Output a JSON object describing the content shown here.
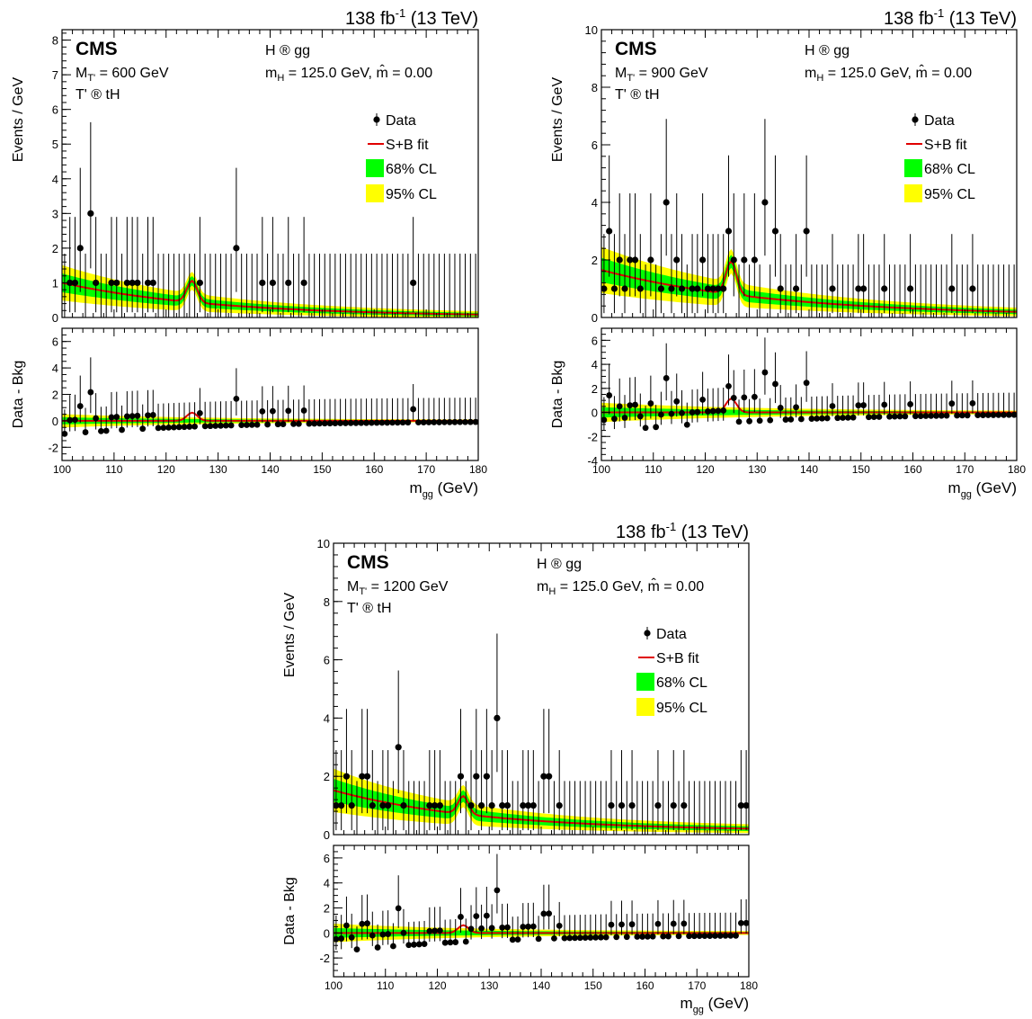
{
  "chart_data": [
    {
      "type": "scatter",
      "lumi": "138 fb",
      "lumi_exp": "-1",
      "energy": "(13 TeV)",
      "cms": "CMS",
      "mass_label": "= 600 GeV",
      "process": "T' ® tH",
      "decay": "H ® gg",
      "mh_text": "= 125.0 GeV, m̂ = 0.00",
      "ylabel_top": "Events / GeV",
      "ylabel_bottom": "Data - Bkg",
      "xlabel": "(GeV)",
      "xlim": [
        100,
        180
      ],
      "ylim_top": [
        0,
        8.3
      ],
      "ylim_bottom": [
        -3,
        7
      ],
      "yticks_top": [
        0,
        1,
        2,
        3,
        4,
        5,
        6,
        7,
        8
      ],
      "yticks_bottom": [
        -2,
        0,
        2,
        4,
        6
      ],
      "xticks": [
        100,
        110,
        120,
        130,
        140,
        150,
        160,
        170,
        180
      ],
      "legend": [
        "Data",
        "S+B fit",
        "68% CL",
        "95% CL"
      ],
      "fit": {
        "bkg_a": 0.98,
        "bkg_b": 0.034,
        "bkg_c": 0.02,
        "sig": 0.62,
        "sigma": 1.0
      },
      "data_points": [
        {
          "x": 100.5,
          "y": 0
        },
        {
          "x": 101.5,
          "y": 1
        },
        {
          "x": 102.5,
          "y": 1
        },
        {
          "x": 103.5,
          "y": 2
        },
        {
          "x": 105.5,
          "y": 3
        },
        {
          "x": 106.5,
          "y": 1
        },
        {
          "x": 109.5,
          "y": 1
        },
        {
          "x": 110.5,
          "y": 1
        },
        {
          "x": 112.5,
          "y": 1
        },
        {
          "x": 113.5,
          "y": 1
        },
        {
          "x": 114.5,
          "y": 1
        },
        {
          "x": 116.5,
          "y": 1
        },
        {
          "x": 117.5,
          "y": 1
        },
        {
          "x": 126.5,
          "y": 1
        },
        {
          "x": 133.5,
          "y": 2
        },
        {
          "x": 138.5,
          "y": 1
        },
        {
          "x": 140.5,
          "y": 1
        },
        {
          "x": 143.5,
          "y": 1
        },
        {
          "x": 146.5,
          "y": 1
        },
        {
          "x": 167.5,
          "y": 1
        }
      ]
    },
    {
      "type": "scatter",
      "lumi": "138 fb",
      "lumi_exp": "-1",
      "energy": "(13 TeV)",
      "cms": "CMS",
      "mass_label": "= 900 GeV",
      "process": "T' ® tH",
      "decay": "H ® gg",
      "mh_text": "= 125.0 GeV, m̂ = 0.00",
      "ylabel_top": "Events / GeV",
      "ylabel_bottom": "Data - Bkg",
      "xlabel": "(GeV)",
      "xlim": [
        100,
        180
      ],
      "ylim_top": [
        0,
        10
      ],
      "ylim_bottom": [
        -4,
        7
      ],
      "yticks_top": [
        0,
        2,
        4,
        6,
        8,
        10
      ],
      "yticks_bottom": [
        -4,
        -2,
        0,
        2,
        4,
        6
      ],
      "xticks": [
        100,
        110,
        120,
        130,
        140,
        150,
        160,
        170,
        180
      ],
      "legend": [
        "Data",
        "S+B fit",
        "68% CL",
        "95% CL"
      ],
      "fit": {
        "bkg_a": 1.6,
        "bkg_b": 0.03,
        "bkg_c": 0.05,
        "sig": 1.15,
        "sigma": 1.0
      },
      "data_points": [
        {
          "x": 100.5,
          "y": 1
        },
        {
          "x": 101.5,
          "y": 3
        },
        {
          "x": 102.5,
          "y": 1
        },
        {
          "x": 103.5,
          "y": 2
        },
        {
          "x": 104.5,
          "y": 1
        },
        {
          "x": 105.5,
          "y": 2
        },
        {
          "x": 106.5,
          "y": 2
        },
        {
          "x": 107.5,
          "y": 1
        },
        {
          "x": 109.5,
          "y": 2
        },
        {
          "x": 111.5,
          "y": 1
        },
        {
          "x": 112.5,
          "y": 4
        },
        {
          "x": 113.5,
          "y": 1
        },
        {
          "x": 114.5,
          "y": 2
        },
        {
          "x": 115.5,
          "y": 1
        },
        {
          "x": 117.5,
          "y": 1
        },
        {
          "x": 118.5,
          "y": 1
        },
        {
          "x": 119.5,
          "y": 2
        },
        {
          "x": 120.5,
          "y": 1
        },
        {
          "x": 121.5,
          "y": 1
        },
        {
          "x": 122.5,
          "y": 1
        },
        {
          "x": 123.5,
          "y": 1
        },
        {
          "x": 124.5,
          "y": 3
        },
        {
          "x": 125.5,
          "y": 2
        },
        {
          "x": 127.5,
          "y": 2
        },
        {
          "x": 129.5,
          "y": 2
        },
        {
          "x": 131.5,
          "y": 4
        },
        {
          "x": 133.5,
          "y": 3
        },
        {
          "x": 134.5,
          "y": 1
        },
        {
          "x": 137.5,
          "y": 1
        },
        {
          "x": 139.5,
          "y": 3
        },
        {
          "x": 144.5,
          "y": 1
        },
        {
          "x": 149.5,
          "y": 1
        },
        {
          "x": 150.5,
          "y": 1
        },
        {
          "x": 154.5,
          "y": 1
        },
        {
          "x": 159.5,
          "y": 1
        },
        {
          "x": 167.5,
          "y": 1
        },
        {
          "x": 171.5,
          "y": 1
        }
      ]
    },
    {
      "type": "scatter",
      "lumi": "138 fb",
      "lumi_exp": "-1",
      "energy": "(13 TeV)",
      "cms": "CMS",
      "mass_label": "= 1200 GeV",
      "process": "T' ® tH",
      "decay": "H ® gg",
      "mh_text": "= 125.0 GeV, m̂ = 0.00",
      "ylabel_top": "Events / GeV",
      "ylabel_bottom": "Data - Bkg",
      "xlabel": "(GeV)",
      "xlim": [
        100,
        180
      ],
      "ylim_top": [
        0,
        10
      ],
      "ylim_bottom": [
        -3.5,
        7
      ],
      "yticks_top": [
        0,
        2,
        4,
        6,
        8,
        10
      ],
      "yticks_bottom": [
        -2,
        0,
        2,
        4,
        6
      ],
      "xticks": [
        100,
        110,
        120,
        130,
        140,
        150,
        160,
        170,
        180
      ],
      "legend": [
        "Data",
        "S+B fit",
        "68% CL",
        "95% CL"
      ],
      "fit": {
        "bkg_a": 1.4,
        "bkg_b": 0.035,
        "bkg_c": 0.12,
        "sig": 0.62,
        "sigma": 1.0
      },
      "data_points": [
        {
          "x": 100.5,
          "y": 1
        },
        {
          "x": 101.5,
          "y": 1
        },
        {
          "x": 102.5,
          "y": 2
        },
        {
          "x": 103.5,
          "y": 1
        },
        {
          "x": 105.5,
          "y": 2
        },
        {
          "x": 106.5,
          "y": 2
        },
        {
          "x": 107.5,
          "y": 1
        },
        {
          "x": 109.5,
          "y": 1
        },
        {
          "x": 110.5,
          "y": 1
        },
        {
          "x": 112.5,
          "y": 3
        },
        {
          "x": 113.5,
          "y": 1
        },
        {
          "x": 118.5,
          "y": 1
        },
        {
          "x": 119.5,
          "y": 1
        },
        {
          "x": 120.5,
          "y": 1
        },
        {
          "x": 124.5,
          "y": 2
        },
        {
          "x": 126.5,
          "y": 1
        },
        {
          "x": 127.5,
          "y": 2
        },
        {
          "x": 128.5,
          "y": 1
        },
        {
          "x": 129.5,
          "y": 2
        },
        {
          "x": 130.5,
          "y": 1
        },
        {
          "x": 131.5,
          "y": 4
        },
        {
          "x": 132.5,
          "y": 1
        },
        {
          "x": 133.5,
          "y": 1
        },
        {
          "x": 136.5,
          "y": 1
        },
        {
          "x": 137.5,
          "y": 1
        },
        {
          "x": 138.5,
          "y": 1
        },
        {
          "x": 140.5,
          "y": 2
        },
        {
          "x": 141.5,
          "y": 2
        },
        {
          "x": 143.5,
          "y": 1
        },
        {
          "x": 153.5,
          "y": 1
        },
        {
          "x": 155.5,
          "y": 1
        },
        {
          "x": 157.5,
          "y": 1
        },
        {
          "x": 162.5,
          "y": 1
        },
        {
          "x": 165.5,
          "y": 1
        },
        {
          "x": 167.5,
          "y": 1
        },
        {
          "x": 178.5,
          "y": 1
        },
        {
          "x": 179.5,
          "y": 1
        }
      ]
    }
  ]
}
